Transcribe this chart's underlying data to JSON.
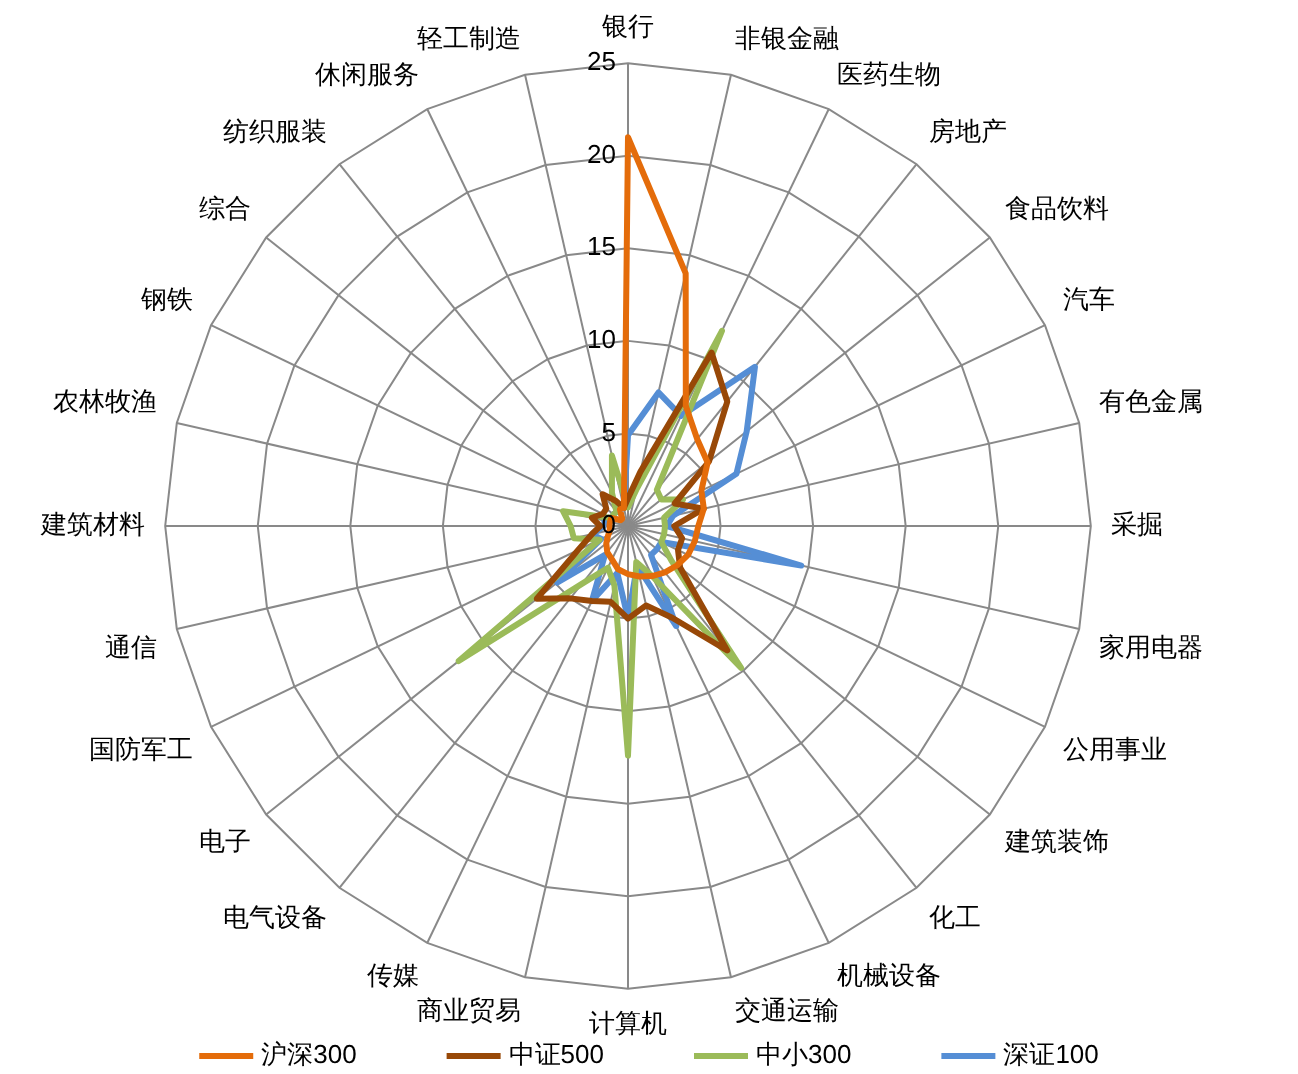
{
  "chart_data": {
    "type": "radar",
    "categories": [
      "银行",
      "非银金融",
      "医药生物",
      "房地产",
      "食品饮料",
      "汽车",
      "有色金属",
      "采掘",
      "家用电器",
      "公用事业",
      "建筑装饰",
      "化工",
      "机械设备",
      "交通运输",
      "计算机",
      "商业贸易",
      "传媒",
      "电气设备",
      "电子",
      "国防军工",
      "通信",
      "建筑材料",
      "农林牧渔",
      "钢铁",
      "综合",
      "纺织服装",
      "休闲服务",
      "轻工制造"
    ],
    "series": [
      {
        "name": "沪深300",
        "color": "#e46c0a",
        "values": [
          21,
          14,
          7.2,
          6,
          5.5,
          4.4,
          4.2,
          3.8,
          3.7,
          3.6,
          3.4,
          3.2,
          3,
          2.8,
          2.6,
          2.4,
          2,
          1.8,
          1.5,
          1.2,
          1,
          1,
          1,
          1,
          0.5,
          0.5,
          1,
          1
        ]
      },
      {
        "name": "中证500",
        "color": "#984807",
        "values": [
          1.5,
          3,
          10.4,
          8.6,
          5.6,
          2.8,
          4.2,
          2.5,
          3,
          3,
          3.6,
          8.6,
          5.5,
          4.4,
          5,
          4.2,
          4.5,
          5,
          6.3,
          3,
          2,
          1.5,
          2,
          1.5,
          1.5,
          2.2,
          1.5,
          1
        ]
      },
      {
        "name": "中小300",
        "color": "#9bbb59",
        "values": [
          1,
          2,
          11.7,
          2.5,
          2.3,
          3.3,
          2,
          2,
          2,
          2,
          3,
          9.8,
          3,
          2,
          12.4,
          3.3,
          2.5,
          4,
          11.7,
          1.7,
          3,
          3.1,
          3.6,
          1,
          1,
          1,
          2,
          3.9
        ]
      },
      {
        "name": "深证100",
        "color": "#558ed5",
        "values": [
          4.9,
          7.4,
          6.6,
          11,
          8.2,
          6.5,
          2.5,
          2.1,
          9.6,
          2,
          2,
          2,
          6,
          2.2,
          5,
          2.6,
          4.5,
          2,
          4.9,
          1.6,
          2,
          1.3,
          1.3,
          1,
          1,
          1,
          1,
          1
        ]
      }
    ],
    "ylim": [
      0,
      25
    ],
    "yticks": [
      0,
      5,
      10,
      15,
      20,
      25
    ],
    "grid": true,
    "legend": "bottom",
    "marker": "none",
    "line_style": "solid"
  }
}
